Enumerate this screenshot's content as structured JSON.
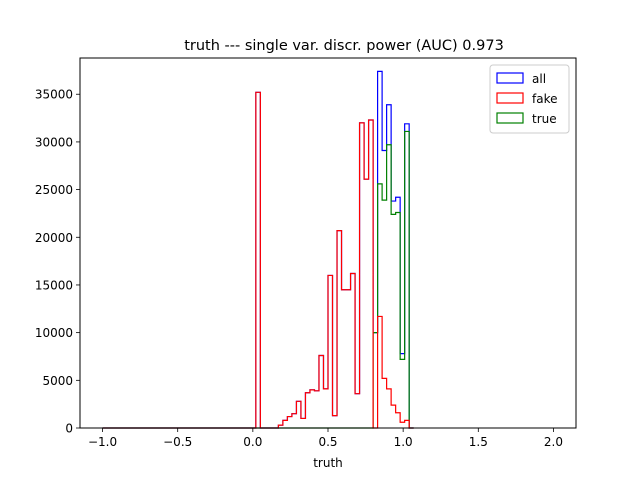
{
  "chart_data": {
    "type": "histogram-step",
    "title": "truth --- single var. discr. power (AUC) 0.973",
    "xlabel": "truth",
    "ylabel": "",
    "xlim": [
      -1.15,
      2.15
    ],
    "ylim": [
      0,
      38800
    ],
    "xticks": [
      -1.0,
      -0.5,
      0.0,
      0.5,
      1.0,
      1.5,
      2.0
    ],
    "xtick_labels": [
      "−1.0",
      "−0.5",
      "0.0",
      "0.5",
      "1.0",
      "1.5",
      "2.0"
    ],
    "yticks": [
      0,
      5000,
      10000,
      15000,
      20000,
      25000,
      30000,
      35000
    ],
    "ytick_labels": [
      "0",
      "5000",
      "10000",
      "15000",
      "20000",
      "25000",
      "30000",
      "35000"
    ],
    "bin_start": -1.0,
    "bin_width": 0.03,
    "legend": {
      "position": "top-right",
      "entries": [
        "all",
        "fake",
        "true"
      ]
    },
    "series": [
      {
        "name": "all",
        "color": "#0000ff",
        "values": [
          0,
          0,
          0,
          0,
          0,
          0,
          0,
          0,
          0,
          0,
          0,
          0,
          0,
          0,
          0,
          0,
          0,
          0,
          0,
          0,
          0,
          0,
          0,
          0,
          0,
          0,
          0,
          0,
          0,
          0,
          0,
          0,
          0,
          0,
          35200,
          0,
          0,
          0,
          0,
          300,
          800,
          1200,
          1500,
          2800,
          1000,
          3700,
          4000,
          3900,
          7600,
          4100,
          16000,
          1300,
          20700,
          14500,
          14500,
          16200,
          3600,
          32000,
          26100,
          32300,
          10000,
          37400,
          29100,
          33900,
          23800,
          24200,
          7800,
          31900,
          0
        ]
      },
      {
        "name": "fake",
        "color": "#ff0000",
        "values": [
          0,
          0,
          0,
          0,
          0,
          0,
          0,
          0,
          0,
          0,
          0,
          0,
          0,
          0,
          0,
          0,
          0,
          0,
          0,
          0,
          0,
          0,
          0,
          0,
          0,
          0,
          0,
          0,
          0,
          0,
          0,
          0,
          0,
          0,
          35200,
          0,
          0,
          0,
          0,
          300,
          800,
          1200,
          1500,
          2800,
          1000,
          3700,
          4000,
          3900,
          7600,
          4100,
          16000,
          1300,
          20700,
          14500,
          14500,
          16200,
          3600,
          32000,
          26100,
          32300,
          0,
          11700,
          5200,
          4100,
          2400,
          1600,
          600,
          800,
          0
        ]
      },
      {
        "name": "true",
        "color": "#008000",
        "values": [
          0,
          0,
          0,
          0,
          0,
          0,
          0,
          0,
          0,
          0,
          0,
          0,
          0,
          0,
          0,
          0,
          0,
          0,
          0,
          0,
          0,
          0,
          0,
          0,
          0,
          0,
          0,
          0,
          0,
          0,
          0,
          0,
          0,
          0,
          0,
          0,
          0,
          0,
          0,
          0,
          0,
          0,
          0,
          0,
          0,
          0,
          0,
          0,
          0,
          0,
          0,
          0,
          0,
          0,
          0,
          0,
          0,
          0,
          0,
          0,
          10000,
          25600,
          23900,
          29700,
          22400,
          22600,
          7200,
          31100,
          0
        ]
      }
    ]
  }
}
